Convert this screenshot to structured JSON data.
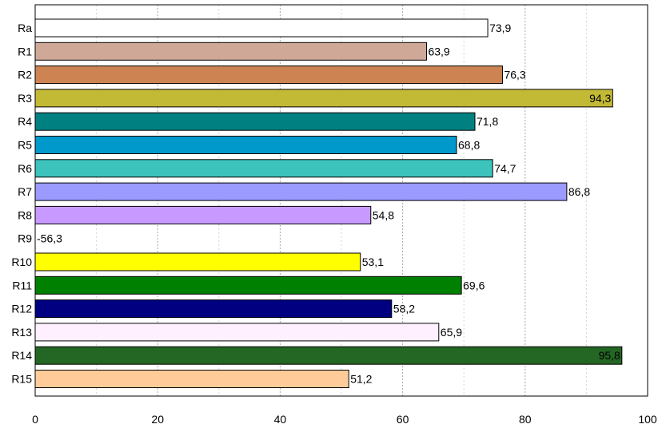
{
  "chart_data": {
    "type": "bar",
    "orientation": "horizontal",
    "categories": [
      "Ra",
      "R1",
      "R2",
      "R3",
      "R4",
      "R5",
      "R6",
      "R7",
      "R8",
      "R9",
      "R10",
      "R11",
      "R12",
      "R13",
      "R14",
      "R15"
    ],
    "values": [
      73.9,
      63.9,
      76.3,
      94.3,
      71.8,
      68.8,
      74.7,
      86.8,
      54.8,
      -56.3,
      53.1,
      69.6,
      58.2,
      65.9,
      95.8,
      51.2
    ],
    "value_labels": [
      "73,9",
      "63,9",
      "76,3",
      "94,3",
      "71,8",
      "68,8",
      "74,7",
      "86,8",
      "54,8",
      "-56,3",
      "53,1",
      "69,6",
      "58,2",
      "65,9",
      "95,8",
      "51,2"
    ],
    "colors": [
      "#ffffff",
      "#d0a898",
      "#cd8452",
      "#c2b935",
      "#008080",
      "#0099cc",
      "#3cc3bb",
      "#9a9aff",
      "#c89aff",
      "#ffffff",
      "#ffff00",
      "#008000",
      "#000080",
      "#fff0ff",
      "#246624",
      "#ffcc99"
    ],
    "label_inside": [
      false,
      false,
      false,
      true,
      false,
      false,
      false,
      false,
      false,
      false,
      false,
      false,
      false,
      false,
      true,
      false
    ],
    "xlim": [
      0,
      100
    ],
    "xticks": [
      0,
      20,
      40,
      60,
      80,
      100
    ],
    "xtick_labels": [
      "0",
      "20",
      "40",
      "60",
      "80",
      "100"
    ],
    "grid": "vertical dashed",
    "title": "",
    "xlabel": "",
    "ylabel": ""
  }
}
